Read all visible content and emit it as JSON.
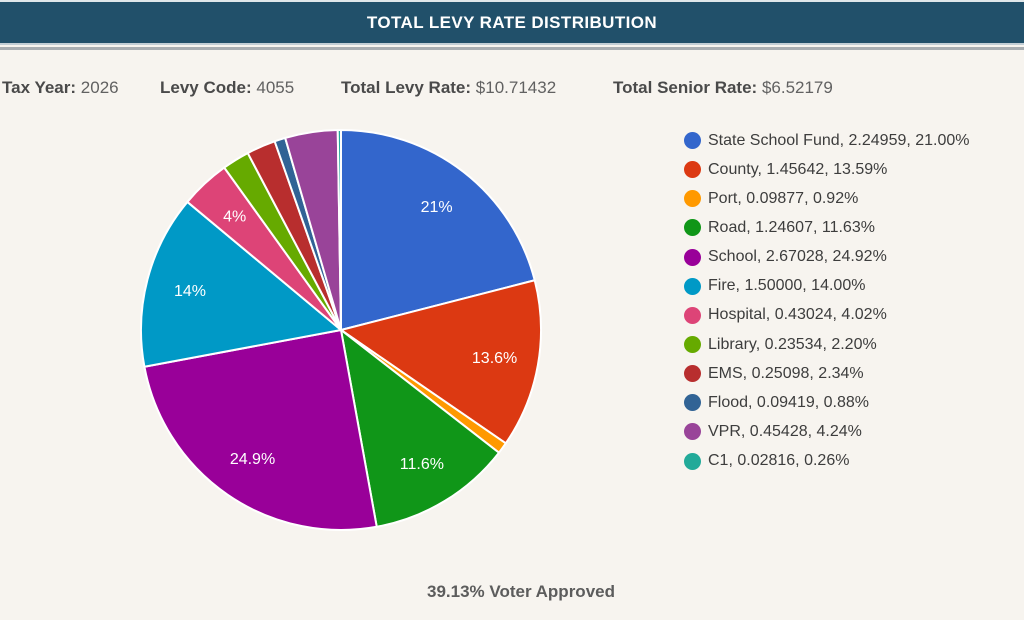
{
  "header": {
    "title": "TOTAL LEVY RATE DISTRIBUTION",
    "bar_color": "#21506A"
  },
  "info": {
    "items": [
      {
        "label": "Tax Year:",
        "value": "2026"
      },
      {
        "label": "Levy Code:",
        "value": "4055"
      },
      {
        "label": "Total Levy Rate:",
        "value": "$10.71432"
      },
      {
        "label": "Total Senior Rate:",
        "value": "$6.52179"
      }
    ]
  },
  "chart_data": {
    "type": "pie",
    "title": "TOTAL LEVY RATE DISTRIBUTION",
    "start_angle_deg": 0,
    "direction": "clockwise",
    "legend_position": "right",
    "legend_entry_format": "name, rate, percent",
    "slices": [
      {
        "name": "State School Fund",
        "value": 2.24959,
        "value_str": "2.24959",
        "percent": 21.0,
        "percent_str": "21.00%",
        "color": "#3366CC",
        "pie_label": "21%"
      },
      {
        "name": "County",
        "value": 1.45642,
        "value_str": "1.45642",
        "percent": 13.59,
        "percent_str": "13.59%",
        "color": "#DC3912",
        "pie_label": "13.6%"
      },
      {
        "name": "Port",
        "value": 0.09877,
        "value_str": "0.09877",
        "percent": 0.92,
        "percent_str": "0.92%",
        "color": "#FF9900",
        "pie_label": ""
      },
      {
        "name": "Road",
        "value": 1.24607,
        "value_str": "1.24607",
        "percent": 11.63,
        "percent_str": "11.63%",
        "color": "#109618",
        "pie_label": "11.6%"
      },
      {
        "name": "School",
        "value": 2.67028,
        "value_str": "2.67028",
        "percent": 24.92,
        "percent_str": "24.92%",
        "color": "#990099",
        "pie_label": "24.9%"
      },
      {
        "name": "Fire",
        "value": 1.5,
        "value_str": "1.50000",
        "percent": 14.0,
        "percent_str": "14.00%",
        "color": "#0099C6",
        "pie_label": "14%"
      },
      {
        "name": "Hospital",
        "value": 0.43024,
        "value_str": "0.43024",
        "percent": 4.02,
        "percent_str": "4.02%",
        "color": "#DD4477",
        "pie_label": "4%"
      },
      {
        "name": "Library",
        "value": 0.23534,
        "value_str": "0.23534",
        "percent": 2.2,
        "percent_str": "2.20%",
        "color": "#66AA00",
        "pie_label": ""
      },
      {
        "name": "EMS",
        "value": 0.25098,
        "value_str": "0.25098",
        "percent": 2.34,
        "percent_str": "2.34%",
        "color": "#B82E2E",
        "pie_label": ""
      },
      {
        "name": "Flood",
        "value": 0.09419,
        "value_str": "0.09419",
        "percent": 0.88,
        "percent_str": "0.88%",
        "color": "#316395",
        "pie_label": ""
      },
      {
        "name": "VPR",
        "value": 0.45428,
        "value_str": "0.45428",
        "percent": 4.24,
        "percent_str": "4.24%",
        "color": "#994499",
        "pie_label": ""
      },
      {
        "name": "C1",
        "value": 0.02816,
        "value_str": "0.02816",
        "percent": 0.26,
        "percent_str": "0.26%",
        "color": "#22AA99",
        "pie_label": ""
      }
    ]
  },
  "footer": {
    "text": "39.13% Voter Approved"
  }
}
